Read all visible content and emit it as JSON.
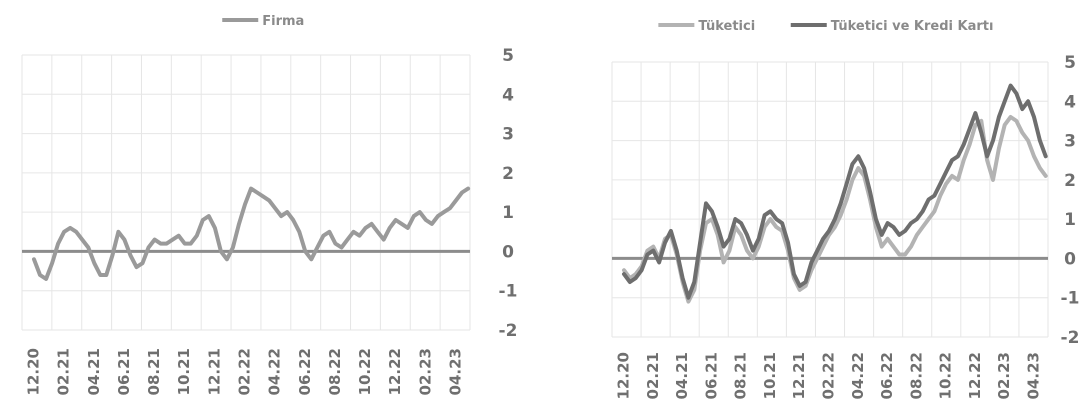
{
  "chart_data": [
    {
      "type": "line",
      "title": "",
      "xlabel": "",
      "ylabel": "",
      "ylim": [
        -2,
        5
      ],
      "yticks": [
        -2,
        -1,
        0,
        1,
        2,
        3,
        4,
        5
      ],
      "y_axis_side": "right",
      "grid": true,
      "legend_placement": "top-center",
      "categories": [
        "12.20",
        "02.21",
        "04.21",
        "06.21",
        "08.21",
        "10.21",
        "12.21",
        "02.22",
        "04.22",
        "06.22",
        "08.22",
        "10.22",
        "12.22",
        "02.23",
        "04.23"
      ],
      "series": [
        {
          "name": "Firma",
          "color": "#9a9a9a",
          "x": [
            0.0,
            0.2,
            0.4,
            0.6,
            0.8,
            1.0,
            1.2,
            1.4,
            1.6,
            1.8,
            2.0,
            2.2,
            2.4,
            2.6,
            2.8,
            3.0,
            3.2,
            3.4,
            3.6,
            3.8,
            4.0,
            4.2,
            4.4,
            4.6,
            4.8,
            5.0,
            5.2,
            5.4,
            5.6,
            5.8,
            6.0,
            6.2,
            6.4,
            6.6,
            6.8,
            7.0,
            7.2,
            7.4,
            7.6,
            7.8,
            8.0,
            8.2,
            8.4,
            8.6,
            8.8,
            9.0,
            9.2,
            9.4,
            9.6,
            9.8,
            10.0,
            10.2,
            10.4,
            10.6,
            10.8,
            11.0,
            11.2,
            11.4,
            11.6,
            11.8,
            12.0,
            12.2,
            12.4,
            12.6,
            12.8,
            13.0,
            13.2,
            13.4,
            13.6,
            13.8,
            14.0,
            14.2,
            14.4
          ],
          "values": [
            -0.2,
            -0.6,
            -0.7,
            -0.3,
            0.2,
            0.5,
            0.6,
            0.5,
            0.3,
            0.1,
            -0.3,
            -0.6,
            -0.6,
            -0.1,
            0.5,
            0.3,
            -0.1,
            -0.4,
            -0.3,
            0.1,
            0.3,
            0.2,
            0.2,
            0.3,
            0.4,
            0.2,
            0.2,
            0.4,
            0.8,
            0.9,
            0.6,
            0.0,
            -0.2,
            0.1,
            0.7,
            1.2,
            1.6,
            1.5,
            1.4,
            1.3,
            1.1,
            0.9,
            1.0,
            0.8,
            0.5,
            0.0,
            -0.2,
            0.1,
            0.4,
            0.5,
            0.2,
            0.1,
            0.3,
            0.5,
            0.4,
            0.6,
            0.7,
            0.5,
            0.3,
            0.6,
            0.8,
            0.7,
            0.6,
            0.9,
            1.0,
            0.8,
            0.7,
            0.9,
            1.0,
            1.1,
            1.3,
            1.5,
            1.6
          ]
        }
      ]
    },
    {
      "type": "line",
      "title": "",
      "xlabel": "",
      "ylabel": "",
      "ylim": [
        -2,
        5
      ],
      "yticks": [
        -2,
        -1,
        0,
        1,
        2,
        3,
        4,
        5
      ],
      "y_axis_side": "right",
      "grid": true,
      "legend_placement": "top-center",
      "categories": [
        "12.20",
        "02.21",
        "04.21",
        "06.21",
        "08.21",
        "10.21",
        "12.21",
        "02.22",
        "04.22",
        "06.22",
        "08.22",
        "10.22",
        "12.22",
        "02.23",
        "04.23"
      ],
      "series": [
        {
          "name": "Tüketici",
          "color": "#b3b3b3",
          "x": [
            0.0,
            0.2,
            0.4,
            0.6,
            0.8,
            1.0,
            1.2,
            1.4,
            1.6,
            1.8,
            2.0,
            2.2,
            2.4,
            2.6,
            2.8,
            3.0,
            3.2,
            3.4,
            3.6,
            3.8,
            4.0,
            4.2,
            4.4,
            4.6,
            4.8,
            5.0,
            5.2,
            5.4,
            5.6,
            5.8,
            6.0,
            6.2,
            6.4,
            6.6,
            6.8,
            7.0,
            7.2,
            7.4,
            7.6,
            7.8,
            8.0,
            8.2,
            8.4,
            8.6,
            8.8,
            9.0,
            9.2,
            9.4,
            9.6,
            9.8,
            10.0,
            10.2,
            10.4,
            10.6,
            10.8,
            11.0,
            11.2,
            11.4,
            11.6,
            11.8,
            12.0,
            12.2,
            12.4,
            12.6,
            12.8,
            13.0,
            13.2,
            13.4,
            13.6,
            13.8,
            14.0,
            14.2,
            14.4
          ],
          "values": [
            -0.3,
            -0.5,
            -0.4,
            -0.2,
            0.2,
            0.3,
            0.0,
            0.5,
            0.6,
            0.1,
            -0.6,
            -1.1,
            -0.8,
            0.2,
            0.9,
            1.0,
            0.6,
            -0.1,
            0.2,
            0.8,
            0.6,
            0.2,
            0.0,
            0.3,
            0.8,
            1.0,
            0.8,
            0.7,
            0.2,
            -0.5,
            -0.8,
            -0.7,
            -0.3,
            0.0,
            0.3,
            0.6,
            0.8,
            1.1,
            1.5,
            2.0,
            2.3,
            2.1,
            1.5,
            0.8,
            0.3,
            0.5,
            0.3,
            0.1,
            0.1,
            0.3,
            0.6,
            0.8,
            1.0,
            1.2,
            1.6,
            1.9,
            2.1,
            2.0,
            2.5,
            2.9,
            3.4,
            3.5,
            2.5,
            2.0,
            2.8,
            3.4,
            3.6,
            3.5,
            3.2,
            3.0,
            2.6,
            2.3,
            2.1
          ]
        },
        {
          "name": "Tüketici ve Kredi Kartı",
          "color": "#6e6e6e",
          "x": [
            0.0,
            0.2,
            0.4,
            0.6,
            0.8,
            1.0,
            1.2,
            1.4,
            1.6,
            1.8,
            2.0,
            2.2,
            2.4,
            2.6,
            2.8,
            3.0,
            3.2,
            3.4,
            3.6,
            3.8,
            4.0,
            4.2,
            4.4,
            4.6,
            4.8,
            5.0,
            5.2,
            5.4,
            5.6,
            5.8,
            6.0,
            6.2,
            6.4,
            6.6,
            6.8,
            7.0,
            7.2,
            7.4,
            7.6,
            7.8,
            8.0,
            8.2,
            8.4,
            8.6,
            8.8,
            9.0,
            9.2,
            9.4,
            9.6,
            9.8,
            10.0,
            10.2,
            10.4,
            10.6,
            10.8,
            11.0,
            11.2,
            11.4,
            11.6,
            11.8,
            12.0,
            12.2,
            12.4,
            12.6,
            12.8,
            13.0,
            13.2,
            13.4,
            13.6,
            13.8,
            14.0,
            14.2,
            14.4
          ],
          "values": [
            -0.4,
            -0.6,
            -0.5,
            -0.3,
            0.1,
            0.2,
            -0.1,
            0.4,
            0.7,
            0.2,
            -0.5,
            -1.0,
            -0.6,
            0.4,
            1.4,
            1.2,
            0.8,
            0.3,
            0.5,
            1.0,
            0.9,
            0.6,
            0.2,
            0.5,
            1.1,
            1.2,
            1.0,
            0.9,
            0.4,
            -0.4,
            -0.7,
            -0.6,
            -0.1,
            0.2,
            0.5,
            0.7,
            1.0,
            1.4,
            1.9,
            2.4,
            2.6,
            2.3,
            1.7,
            1.0,
            0.6,
            0.9,
            0.8,
            0.6,
            0.7,
            0.9,
            1.0,
            1.2,
            1.5,
            1.6,
            1.9,
            2.2,
            2.5,
            2.6,
            2.9,
            3.3,
            3.7,
            3.2,
            2.6,
            3.0,
            3.6,
            4.0,
            4.4,
            4.2,
            3.8,
            4.0,
            3.6,
            3.0,
            2.6
          ]
        }
      ]
    }
  ]
}
